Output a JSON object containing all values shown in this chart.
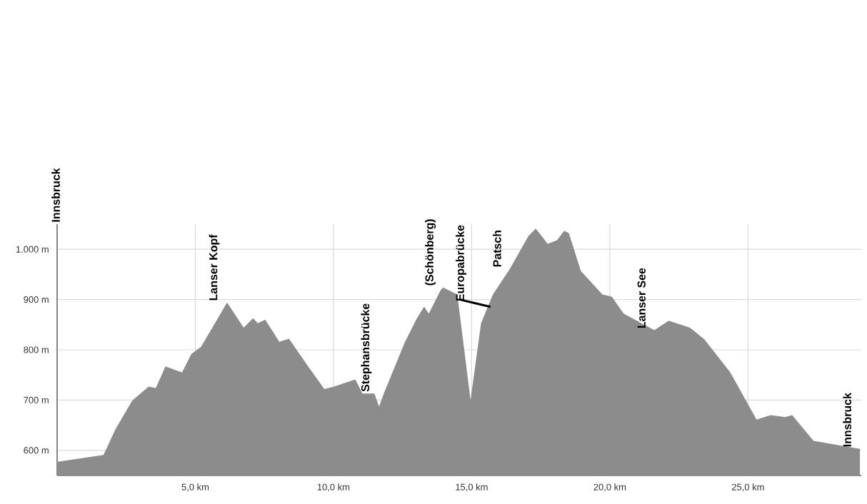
{
  "chart_data": {
    "type": "area",
    "series": [
      {
        "type": "area",
        "color": "#8c8c8c",
        "x": [
          0,
          1.68,
          2.11,
          2.72,
          3.31,
          3.57,
          3.92,
          4.52,
          4.86,
          5.21,
          6.15,
          6.75,
          7.09,
          7.26,
          7.53,
          8.04,
          8.39,
          8.98,
          9.67,
          10.02,
          10.79,
          11.05,
          11.48,
          11.65,
          11.82,
          12.59,
          13.02,
          13.28,
          13.45,
          13.88,
          13.97,
          14.48,
          14.96,
          15.34,
          15.77,
          16.38,
          17.06,
          17.32,
          17.75,
          18.09,
          18.35,
          18.52,
          18.95,
          19.73,
          20.07,
          20.5,
          21.61,
          22.13,
          22.9,
          23.42,
          24.36,
          25.31,
          25.82,
          26.34,
          26.6,
          27.37,
          29.05
        ],
        "values": [
          577,
          591,
          642,
          699,
          727,
          724,
          767,
          755,
          792,
          806,
          894,
          844,
          863,
          853,
          860,
          816,
          822,
          775,
          722,
          727,
          741,
          713,
          713,
          687,
          713,
          816,
          863,
          886,
          872,
          919,
          924,
          910,
          700,
          853,
          910,
          961,
          1027,
          1041,
          1011,
          1018,
          1037,
          1032,
          957,
          910,
          906,
          872,
          839,
          858,
          844,
          821,
          755,
          661,
          670,
          666,
          670,
          619,
          603
        ]
      },
      {
        "type": "line",
        "color": "#000000",
        "x": [
          14.57,
          15.1,
          15.65
        ],
        "values": [
          900,
          893,
          886
        ]
      }
    ],
    "xlim": [
      0,
      29.1
    ],
    "ylim": [
      550,
      1050
    ],
    "xticks": [
      {
        "value": 5,
        "label": "5,0 km"
      },
      {
        "value": 10,
        "label": "10,0 km"
      },
      {
        "value": 15,
        "label": "15,0 km"
      },
      {
        "value": 20,
        "label": "20,0 km"
      },
      {
        "value": 25,
        "label": "25,0 km"
      }
    ],
    "yticks": [
      {
        "value": 600,
        "label": "600 m"
      },
      {
        "value": 700,
        "label": "700 m"
      },
      {
        "value": 800,
        "label": "800 m"
      },
      {
        "value": 900,
        "label": "900 m"
      },
      {
        "value": 1000,
        "label": "1.000 m"
      }
    ],
    "grid": true,
    "annotations": [
      "Innsbruck",
      {
        "text": "Lanser Kopf",
        "x": 6.15,
        "y": 894
      },
      {
        "text": "Stephansbrücke",
        "x": 11.65,
        "y": 687
      },
      {
        "text": "(Schönberg)",
        "x": 13.97,
        "y": 924
      },
      {
        "text": "Europabrücke",
        "x": 15.08,
        "y": 893
      },
      {
        "text": "Patsch",
        "x": 16.38,
        "y": 961
      },
      {
        "text": "Lanser See",
        "x": 21.61,
        "y": 839
      },
      {
        "text": "Innsbruck",
        "x": 29.05,
        "y": 603
      }
    ]
  }
}
